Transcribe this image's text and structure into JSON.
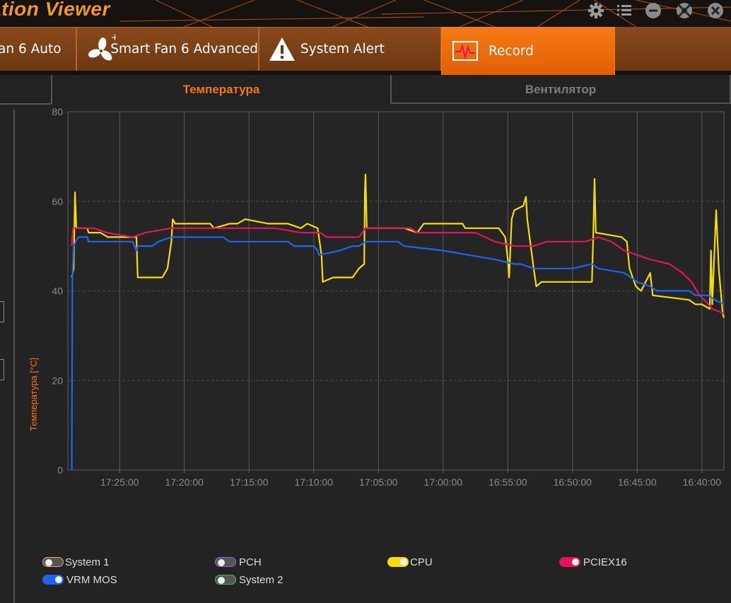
{
  "app": {
    "title": "ation Viewer"
  },
  "window_controls": [
    "gear-icon",
    "list-icon",
    "minimize-icon",
    "help-icon",
    "close-icon"
  ],
  "tabs": [
    {
      "label": "an 6 Auto",
      "icon": "fan-auto-icon",
      "active": false
    },
    {
      "label": "Smart Fan 6 Advanced",
      "icon": "fan-icon",
      "active": false
    },
    {
      "label": "System Alert",
      "icon": "warning-icon",
      "active": false
    },
    {
      "label": "Record",
      "icon": "pulse-icon",
      "active": true
    }
  ],
  "subtabs": [
    {
      "label": "Температура",
      "active": true
    },
    {
      "label": "Вентилятор",
      "active": false
    }
  ],
  "colors": {
    "accent": "#f5751a",
    "cpu": "#f5dc0a",
    "pciex16": "#e0145f",
    "vrm_mos": "#1e64f0",
    "system1": "#f0a060",
    "pch": "#9060f0",
    "system2": "#40c060"
  },
  "chart_data": {
    "type": "line",
    "ylabel": "Температура [°C]",
    "ylim": [
      0,
      80
    ],
    "yticks": [
      0,
      20,
      40,
      60,
      80
    ],
    "x_ticks": [
      "17:25:00",
      "17:20:00",
      "17:15:00",
      "17:10:00",
      "17:05:00",
      "17:00:00",
      "16:55:00",
      "16:50:00",
      "16:45:00",
      "16:40:00"
    ],
    "x_tick_minutes_ago": [
      4,
      9,
      14,
      19,
      24,
      29,
      34,
      39,
      44,
      49
    ],
    "x_range_minutes_ago": [
      0,
      50.7
    ],
    "grid": true,
    "series": [
      {
        "name": "CPU",
        "color": "#f5dc0a",
        "points": [
          [
            0.3,
            43
          ],
          [
            0.45,
            45
          ],
          [
            0.5,
            54
          ],
          [
            0.55,
            62
          ],
          [
            0.65,
            54
          ],
          [
            1.5,
            54
          ],
          [
            1.6,
            53
          ],
          [
            2.5,
            53
          ],
          [
            3.1,
            52
          ],
          [
            5.3,
            52
          ],
          [
            5.4,
            43
          ],
          [
            7.3,
            43
          ],
          [
            7.7,
            45
          ],
          [
            8.0,
            51
          ],
          [
            8.1,
            56
          ],
          [
            8.3,
            55
          ],
          [
            11.0,
            55
          ],
          [
            11.3,
            54
          ],
          [
            12.5,
            55
          ],
          [
            13.1,
            55
          ],
          [
            13.7,
            56
          ],
          [
            15.5,
            55
          ],
          [
            17.0,
            55
          ],
          [
            18.0,
            54
          ],
          [
            18.5,
            55
          ],
          [
            19.3,
            54
          ],
          [
            19.4,
            52
          ],
          [
            19.6,
            48
          ],
          [
            19.7,
            42
          ],
          [
            20.5,
            43
          ],
          [
            22.0,
            43
          ],
          [
            22.5,
            45
          ],
          [
            22.9,
            46
          ],
          [
            22.95,
            62
          ],
          [
            23.0,
            66
          ],
          [
            23.1,
            54
          ],
          [
            26.0,
            54
          ],
          [
            27.0,
            53
          ],
          [
            27.5,
            55
          ],
          [
            28.0,
            55
          ],
          [
            30.5,
            55
          ],
          [
            30.7,
            54
          ],
          [
            31.5,
            54
          ],
          [
            33.3,
            54
          ],
          [
            33.8,
            52
          ],
          [
            34.0,
            47
          ],
          [
            34.1,
            43
          ],
          [
            34.3,
            56
          ],
          [
            34.5,
            58
          ],
          [
            35.2,
            59
          ],
          [
            35.4,
            61
          ],
          [
            35.5,
            56
          ],
          [
            36.0,
            45
          ],
          [
            36.2,
            41
          ],
          [
            36.6,
            42
          ],
          [
            40.5,
            42
          ],
          [
            40.6,
            52
          ],
          [
            40.7,
            65
          ],
          [
            40.8,
            53
          ],
          [
            42.8,
            52
          ],
          [
            43.2,
            51
          ],
          [
            43.4,
            45
          ],
          [
            43.9,
            41
          ],
          [
            44.3,
            40
          ],
          [
            45.0,
            44
          ],
          [
            45.2,
            39
          ],
          [
            48.0,
            38
          ],
          [
            48.5,
            37
          ],
          [
            49.0,
            37
          ],
          [
            49.6,
            36
          ],
          [
            49.7,
            49
          ],
          [
            49.8,
            37
          ],
          [
            50.1,
            58
          ],
          [
            50.3,
            45
          ],
          [
            50.6,
            35
          ],
          [
            50.7,
            34
          ]
        ]
      },
      {
        "name": "PCIEX16",
        "color": "#e0145f",
        "points": [
          [
            0.3,
            50
          ],
          [
            0.4,
            54
          ],
          [
            2.0,
            54
          ],
          [
            3.0,
            53
          ],
          [
            5.0,
            52
          ],
          [
            6.0,
            53
          ],
          [
            8.0,
            54
          ],
          [
            13.0,
            54
          ],
          [
            16.0,
            54
          ],
          [
            18.0,
            53
          ],
          [
            19.5,
            53
          ],
          [
            20.0,
            52
          ],
          [
            22.5,
            52
          ],
          [
            23.0,
            54
          ],
          [
            26.5,
            54
          ],
          [
            27.0,
            53
          ],
          [
            31.5,
            53
          ],
          [
            33.0,
            51
          ],
          [
            34.5,
            50
          ],
          [
            36.0,
            50
          ],
          [
            37.0,
            51
          ],
          [
            40.0,
            51
          ],
          [
            41.0,
            52
          ],
          [
            42.0,
            51
          ],
          [
            43.0,
            49
          ],
          [
            44.0,
            48
          ],
          [
            45.0,
            47
          ],
          [
            46.5,
            46
          ],
          [
            47.5,
            44
          ],
          [
            48.2,
            42
          ],
          [
            48.8,
            39
          ],
          [
            49.2,
            38
          ],
          [
            49.8,
            36
          ],
          [
            50.7,
            35
          ]
        ]
      },
      {
        "name": "VRM MOS",
        "color": "#1e64f0",
        "points": [
          [
            0.3,
            0
          ],
          [
            0.35,
            43
          ],
          [
            0.45,
            50
          ],
          [
            0.6,
            51
          ],
          [
            0.8,
            52
          ],
          [
            1.5,
            52
          ],
          [
            1.6,
            51
          ],
          [
            5.0,
            51
          ],
          [
            5.3,
            49
          ],
          [
            5.4,
            50
          ],
          [
            6.5,
            50
          ],
          [
            7.0,
            51
          ],
          [
            8.0,
            52
          ],
          [
            12.0,
            52
          ],
          [
            12.5,
            51
          ],
          [
            16.0,
            51
          ],
          [
            17.0,
            51
          ],
          [
            17.5,
            50
          ],
          [
            19.0,
            50
          ],
          [
            19.3,
            49
          ],
          [
            19.4,
            48
          ],
          [
            21.0,
            49
          ],
          [
            22.0,
            50
          ],
          [
            22.5,
            50
          ],
          [
            23.0,
            51
          ],
          [
            25.5,
            51
          ],
          [
            26.0,
            50
          ],
          [
            29.0,
            49
          ],
          [
            31.0,
            48
          ],
          [
            33.0,
            47
          ],
          [
            34.5,
            46
          ],
          [
            35.0,
            46
          ],
          [
            36.0,
            45
          ],
          [
            37.0,
            45
          ],
          [
            39.0,
            45
          ],
          [
            40.5,
            46
          ],
          [
            41.0,
            45
          ],
          [
            43.0,
            44
          ],
          [
            44.0,
            42
          ],
          [
            45.0,
            41
          ],
          [
            45.5,
            40
          ],
          [
            46.0,
            40
          ],
          [
            48.0,
            40
          ],
          [
            48.5,
            39
          ],
          [
            49.5,
            39
          ],
          [
            50.0,
            38
          ],
          [
            50.7,
            37
          ]
        ]
      }
    ]
  },
  "legend": [
    {
      "label": "System 1",
      "color": "#f0a060",
      "on": false
    },
    {
      "label": "PCH",
      "color": "#9060f0",
      "on": false
    },
    {
      "label": "CPU",
      "color": "#f5dc0a",
      "on": true
    },
    {
      "label": "PCIEX16",
      "color": "#e0145f",
      "on": true
    },
    {
      "label": "VRM MOS",
      "color": "#1e64f0",
      "on": true
    },
    {
      "label": "System 2",
      "color": "#40c060",
      "on": false
    }
  ]
}
